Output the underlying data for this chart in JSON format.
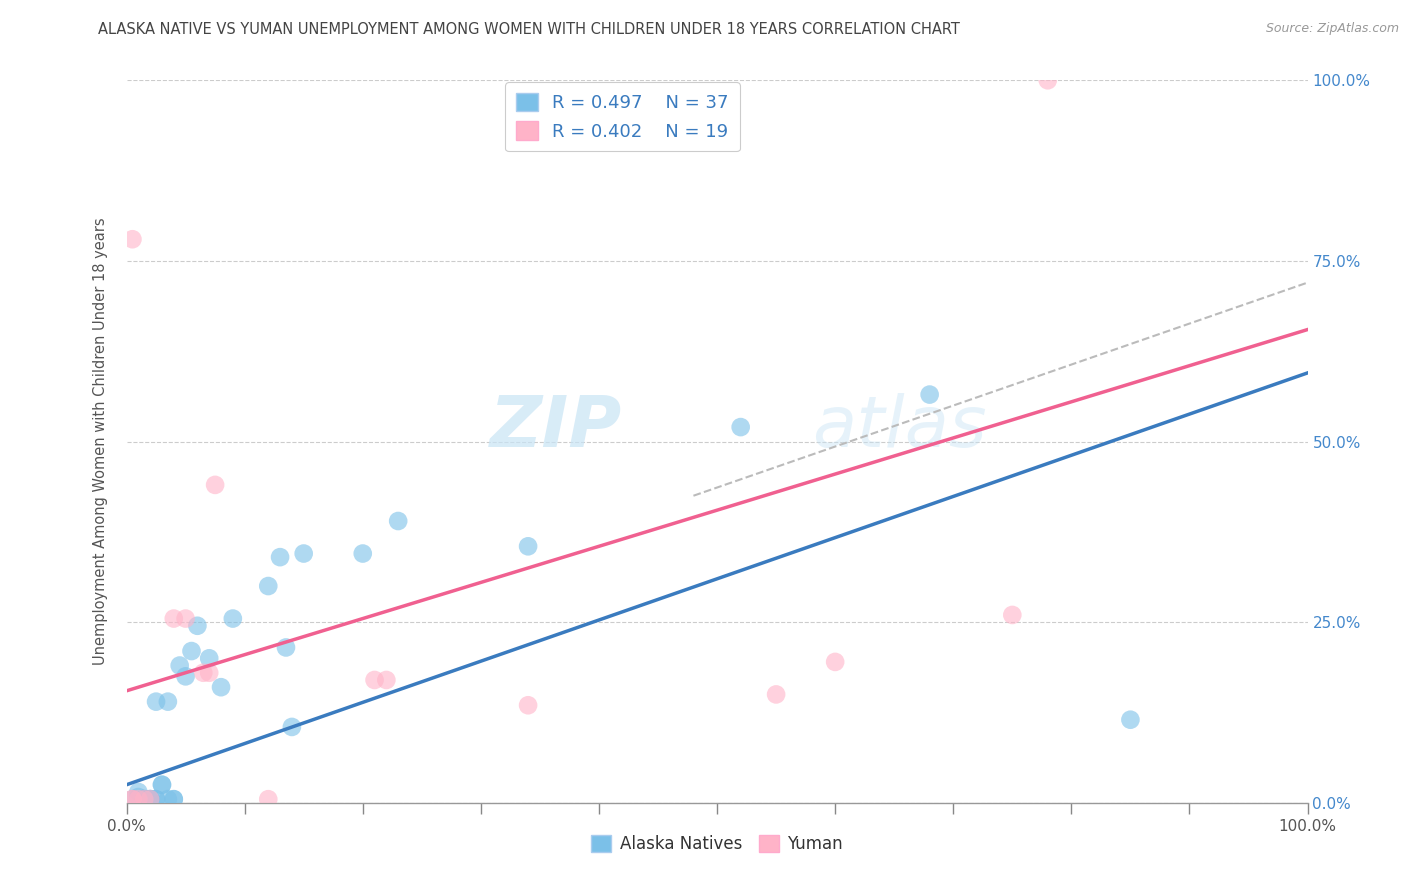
{
  "title": "ALASKA NATIVE VS YUMAN UNEMPLOYMENT AMONG WOMEN WITH CHILDREN UNDER 18 YEARS CORRELATION CHART",
  "source": "Source: ZipAtlas.com",
  "ylabel": "Unemployment Among Women with Children Under 18 years",
  "legend_blue_r": "R = 0.497",
  "legend_blue_n": "N = 37",
  "legend_pink_r": "R = 0.402",
  "legend_pink_n": "N = 19",
  "legend_label_blue": "Alaska Natives",
  "legend_label_pink": "Yuman",
  "color_blue": "#7bc0e8",
  "color_pink": "#ffb3c8",
  "color_line_blue": "#3a7bbf",
  "color_line_pink": "#f06090",
  "color_line_dashed": "#bbbbbb",
  "watermark_zip": "ZIP",
  "watermark_atlas": "atlas",
  "blue_x": [
    0.005,
    0.01,
    0.01,
    0.015,
    0.015,
    0.015,
    0.02,
    0.02,
    0.02,
    0.02,
    0.025,
    0.025,
    0.025,
    0.03,
    0.03,
    0.035,
    0.035,
    0.04,
    0.04,
    0.045,
    0.05,
    0.055,
    0.06,
    0.07,
    0.08,
    0.09,
    0.12,
    0.13,
    0.135,
    0.14,
    0.15,
    0.2,
    0.23,
    0.34,
    0.52,
    0.68,
    0.85
  ],
  "blue_y": [
    0.005,
    0.008,
    0.015,
    0.005,
    0.005,
    0.005,
    0.005,
    0.005,
    0.005,
    0.005,
    0.005,
    0.14,
    0.005,
    0.025,
    0.025,
    0.005,
    0.14,
    0.005,
    0.005,
    0.19,
    0.175,
    0.21,
    0.245,
    0.2,
    0.16,
    0.255,
    0.3,
    0.34,
    0.215,
    0.105,
    0.345,
    0.345,
    0.39,
    0.355,
    0.52,
    0.565,
    0.115
  ],
  "pink_x": [
    0.005,
    0.005,
    0.005,
    0.01,
    0.015,
    0.02,
    0.04,
    0.05,
    0.065,
    0.07,
    0.075,
    0.12,
    0.21,
    0.22,
    0.34,
    0.55,
    0.6,
    0.75,
    0.78
  ],
  "pink_y": [
    0.005,
    0.005,
    0.78,
    0.005,
    0.005,
    0.005,
    0.255,
    0.255,
    0.18,
    0.18,
    0.44,
    0.005,
    0.17,
    0.17,
    0.135,
    0.15,
    0.195,
    0.26,
    1.0
  ],
  "blue_line_x": [
    0.0,
    1.0
  ],
  "blue_line_y": [
    0.025,
    0.595
  ],
  "pink_line_x": [
    0.0,
    1.0
  ],
  "pink_line_y": [
    0.155,
    0.655
  ],
  "dashed_line_x": [
    0.48,
    1.0
  ],
  "dashed_line_y": [
    0.425,
    0.72
  ],
  "ytick_values": [
    0.0,
    0.25,
    0.5,
    0.75,
    1.0
  ],
  "ytick_labels_right": [
    "0.0%",
    "25.0%",
    "50.0%",
    "75.0%",
    "100.0%"
  ],
  "xtick_positions": [
    0.0,
    0.1,
    0.2,
    0.3,
    0.4,
    0.5,
    0.6,
    0.7,
    0.8,
    0.9,
    1.0
  ],
  "grid_color": "#cccccc",
  "background_color": "#ffffff",
  "title_color": "#444444",
  "source_color": "#999999",
  "right_tick_color": "#4488cc",
  "ylabel_color": "#555555"
}
